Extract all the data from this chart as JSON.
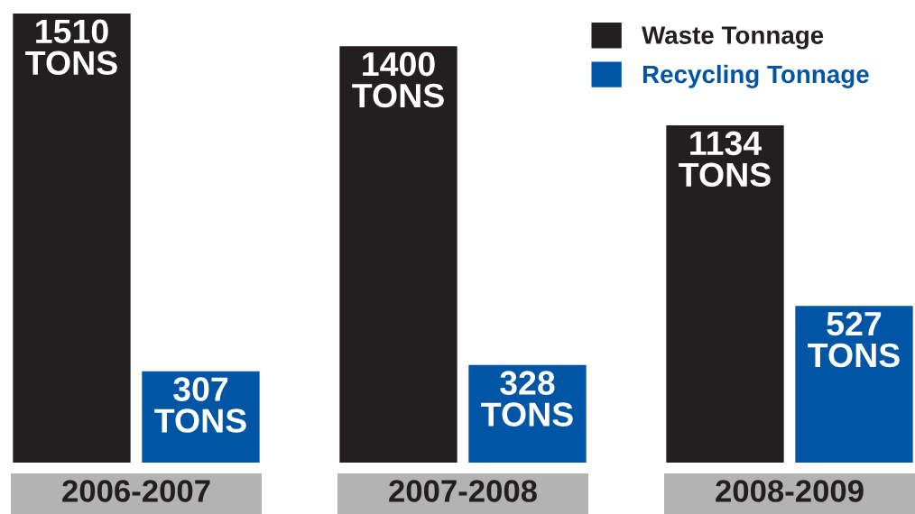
{
  "chart_data": {
    "type": "bar",
    "categories": [
      "2006-2007",
      "2007-2008",
      "2008-2009"
    ],
    "series": [
      {
        "name": "Waste Tonnage",
        "color": "#231f20",
        "values": [
          1510,
          1400,
          1134
        ],
        "value_labels": [
          "1510 TONS",
          "1400 TONS",
          "1134 TONS"
        ]
      },
      {
        "name": "Recycling Tonnage",
        "color": "#0055a5",
        "values": [
          307,
          328,
          527
        ],
        "value_labels": [
          "307 TONS",
          "328 TONS",
          "527 TONS"
        ]
      }
    ],
    "legend": "top right"
  }
}
